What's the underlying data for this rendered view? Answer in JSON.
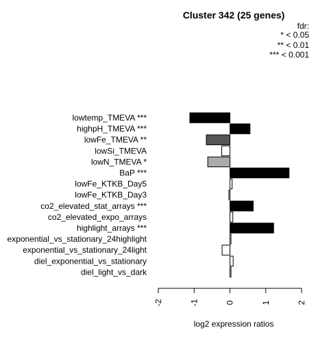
{
  "chart_data": {
    "type": "bar",
    "orientation": "horizontal",
    "title": "Cluster 342 (25 genes)",
    "legend": {
      "title": "fdr:",
      "entries": [
        "* < 0.05",
        "** < 0.01",
        "*** < 0.001"
      ],
      "placement": "top-right"
    },
    "xlabel": "log2 expression ratios",
    "xlim": [
      -2,
      2
    ],
    "xticks": [
      "-2",
      "-1",
      "0",
      "1",
      "2"
    ],
    "categories": [
      "lowtemp_TMEVA ***",
      "highpH_TMEVA ***",
      "lowFe_TMEVA **",
      "lowSi_TMEVA",
      "lowN_TMEVA *",
      "BaP ***",
      "lowFe_KTKB_Day5",
      "lowFe_KTKB_Day3",
      "co2_elevated_stat_arrays ***",
      "co2_elevated_expo_arrays",
      "highlight_arrays ***",
      "exponential_vs_stationary_24highlight",
      "exponential_vs_stationary_24light",
      "diel_exponential_vs_stationary",
      "diel_light_vs_dark"
    ],
    "values": [
      -1.12,
      0.56,
      -0.66,
      -0.23,
      -0.62,
      1.65,
      0.06,
      -0.03,
      0.65,
      0.08,
      1.22,
      0.03,
      -0.22,
      0.09,
      0.03
    ],
    "bar_colors": [
      "#000000",
      "#000000",
      "#555555",
      "#ffffff",
      "#aaaaaa",
      "#000000",
      "#ffffff",
      "#ffffff",
      "#000000",
      "#ffffff",
      "#000000",
      "#ffffff",
      "#ffffff",
      "#ffffff",
      "#ffffff"
    ],
    "grid": false
  }
}
